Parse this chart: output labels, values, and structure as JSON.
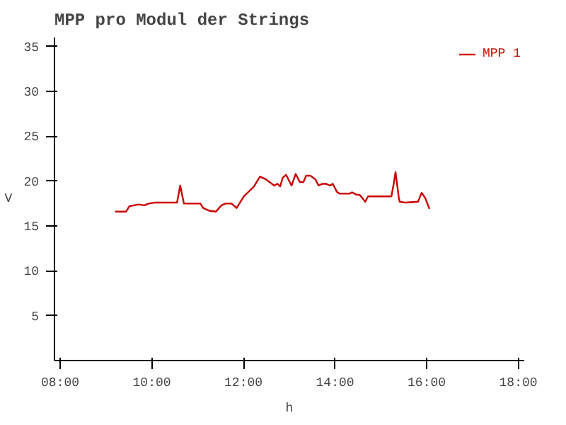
{
  "chart_data": {
    "type": "line",
    "title": "MPP pro Modul der Strings",
    "xlabel": "h",
    "ylabel": "V",
    "xlim": [
      7.875,
      18.13
    ],
    "ylim": [
      0,
      36
    ],
    "xticks": [
      {
        "value": 8,
        "label": "08:00"
      },
      {
        "value": 10,
        "label": "10:00"
      },
      {
        "value": 12,
        "label": "12:00"
      },
      {
        "value": 14,
        "label": "14:00"
      },
      {
        "value": 16,
        "label": "16:00"
      },
      {
        "value": 18,
        "label": "18:00"
      }
    ],
    "yticks": [
      5,
      10,
      15,
      20,
      25,
      30,
      35
    ],
    "grid": false,
    "legend": "top right",
    "line_style": "solid",
    "marker": "none",
    "series": [
      {
        "name": "MPP 1",
        "color": "#cc0000",
        "x": [
          9.2,
          9.44,
          9.51,
          9.71,
          9.84,
          9.93,
          10.06,
          10.55,
          10.62,
          10.7,
          11.06,
          11.12,
          11.25,
          11.4,
          11.52,
          11.61,
          11.74,
          11.85,
          12.01,
          12.23,
          12.36,
          12.49,
          12.67,
          12.74,
          12.8,
          12.86,
          12.93,
          13.05,
          13.14,
          13.23,
          13.31,
          13.37,
          13.46,
          13.57,
          13.64,
          13.73,
          13.8,
          13.89,
          13.95,
          14.04,
          14.1,
          14.32,
          14.37,
          14.46,
          14.54,
          14.66,
          14.72,
          15.23,
          15.28,
          15.32,
          15.39,
          15.41,
          15.54,
          15.81,
          15.89,
          15.97,
          16.06
        ],
        "values": [
          16.6,
          16.6,
          17.2,
          17.4,
          17.3,
          17.5,
          17.6,
          17.6,
          19.5,
          17.5,
          17.5,
          17.0,
          16.7,
          16.6,
          17.3,
          17.5,
          17.5,
          17.0,
          18.3,
          19.4,
          20.5,
          20.2,
          19.5,
          19.7,
          19.4,
          20.4,
          20.7,
          19.5,
          20.8,
          19.9,
          19.9,
          20.6,
          20.6,
          20.2,
          19.5,
          19.7,
          19.7,
          19.5,
          19.7,
          18.8,
          18.6,
          18.6,
          18.75,
          18.5,
          18.45,
          17.7,
          18.3,
          18.3,
          19.7,
          21.0,
          18.2,
          17.7,
          17.6,
          17.7,
          18.7,
          18.1,
          16.9
        ]
      }
    ]
  }
}
